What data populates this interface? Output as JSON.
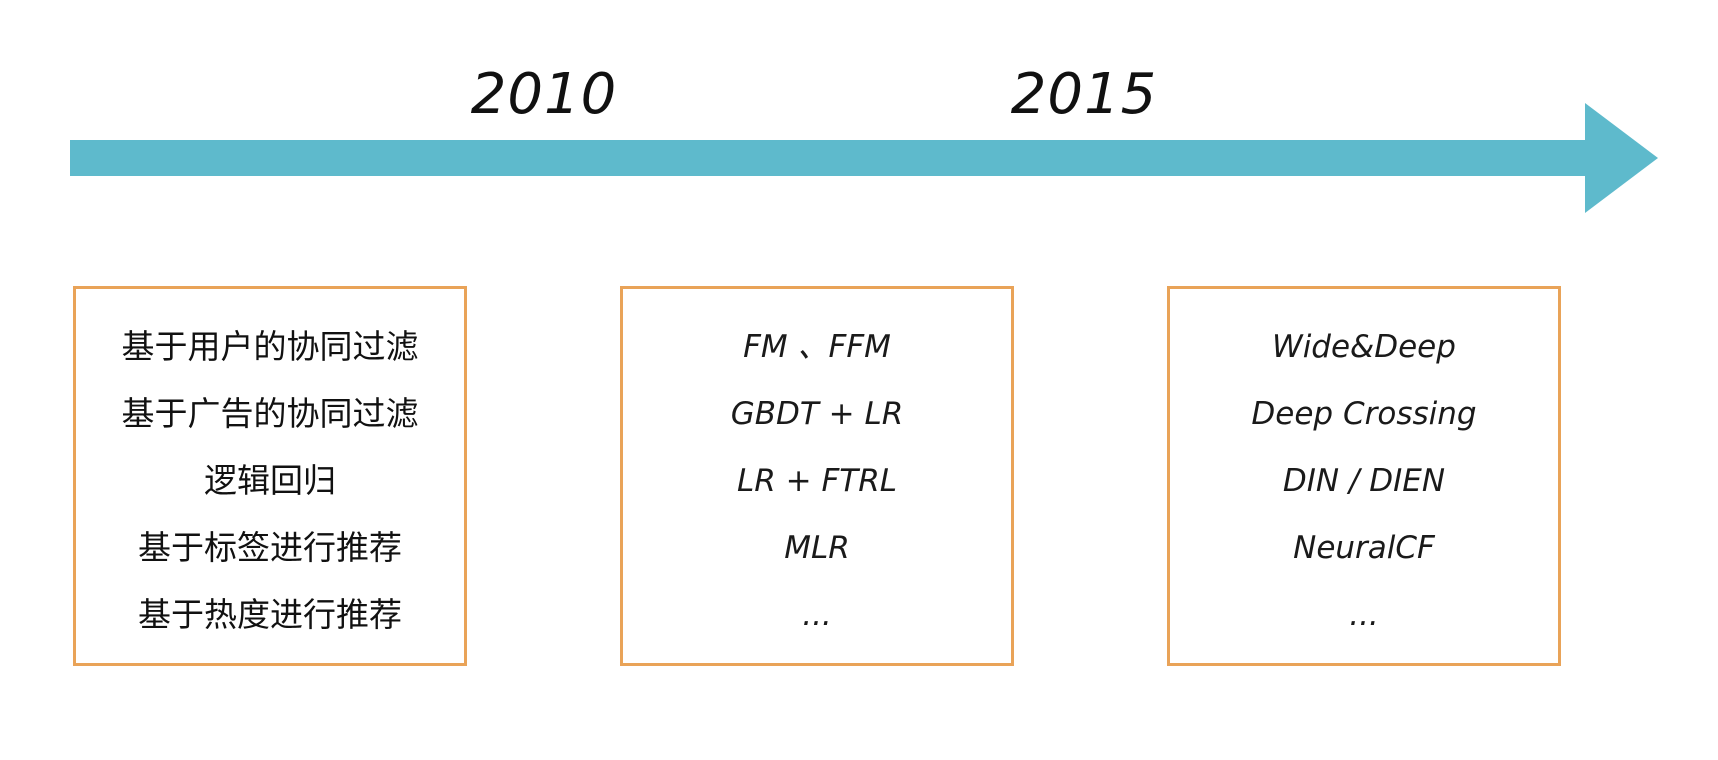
{
  "timeline": {
    "years": [
      "2010",
      "2015"
    ],
    "arrow_color": "#5ebacc"
  },
  "eras": [
    {
      "items": [
        "基于用户的协同过滤",
        "基于广告的协同过滤",
        "逻辑回归",
        "基于标签进行推荐",
        "基于热度进行推荐"
      ]
    },
    {
      "items": [
        "FM 、FFM",
        "GBDT + LR",
        "LR + FTRL",
        "MLR",
        "..."
      ]
    },
    {
      "items": [
        "Wide&Deep",
        "Deep Crossing",
        "DIN / DIEN",
        "NeuralCF",
        "..."
      ]
    }
  ],
  "box_border_color": "#e9a358"
}
